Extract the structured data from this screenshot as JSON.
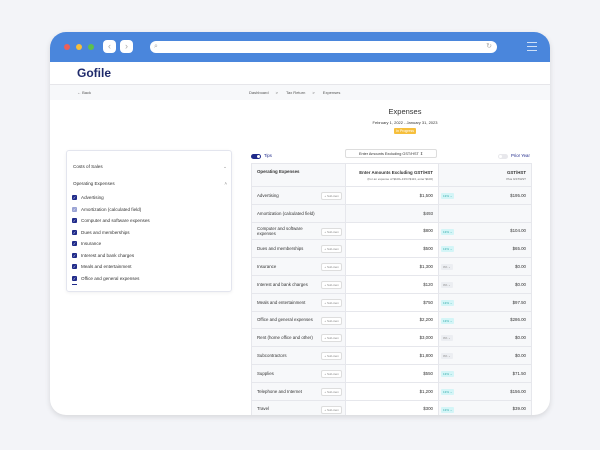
{
  "browser": {
    "colors": {
      "bar": "#4a86dc"
    }
  },
  "header": {
    "logo": "Gofile"
  },
  "breadcrumb": {
    "back": "← Back",
    "items": [
      "Dashboard",
      "Tax Return",
      "Expenses"
    ],
    "sep": ">"
  },
  "page": {
    "title": "Expenses",
    "dates": "February 1, 2022 - January 31, 2023",
    "status": "In Progress"
  },
  "sidebar": {
    "sections": [
      {
        "label": "Costs of Sales",
        "expanded": false
      },
      {
        "label": "Operating Expenses",
        "expanded": true
      }
    ],
    "items": [
      {
        "label": "Advertising",
        "checked": true
      },
      {
        "label": "Amortization (calculated field)",
        "checked": true,
        "disabled": true
      },
      {
        "label": "Computer and software expenses",
        "checked": true
      },
      {
        "label": "Dues and memberships",
        "checked": true
      },
      {
        "label": "Insurance",
        "checked": true
      },
      {
        "label": "Interest and bank charges",
        "checked": true
      },
      {
        "label": "Meals and entertainment",
        "checked": true
      },
      {
        "label": "Office and general expenses",
        "checked": true
      }
    ]
  },
  "toolbar": {
    "tips": "Tips",
    "tips_on": true,
    "mode": "Enter Amounts Excluding GST/HST",
    "prior_year": "Prior Year",
    "prior_year_on": false
  },
  "table": {
    "headers": {
      "name": "Operating Expenses",
      "amount": "Enter Amounts Excluding GST/HST",
      "amount_note": "(For an expense of $100+13%=$113, enter $100)",
      "gst": "GST/HST",
      "gst_note": "Plus GST/HST"
    },
    "sub_item": "+ Sub-item",
    "rows": [
      {
        "name": "Advertising",
        "amount": "$1,500",
        "rate": "13%",
        "gst": "$195.00"
      },
      {
        "name": "Amortization (calculated field)",
        "amount": "$493",
        "rate": "",
        "gst": ""
      },
      {
        "name": "Computer and software expenses",
        "amount": "$800",
        "rate": "13%",
        "gst": "$104.00"
      },
      {
        "name": "Dues and memberships",
        "amount": "$500",
        "rate": "13%",
        "gst": "$65.00"
      },
      {
        "name": "Insurance",
        "amount": "$1,300",
        "rate": "0%",
        "gst": "$0.00"
      },
      {
        "name": "Interest and bank charges",
        "amount": "$120",
        "rate": "0%",
        "gst": "$0.00"
      },
      {
        "name": "Meals and entertainment",
        "amount": "$750",
        "rate": "13%",
        "gst": "$97.50"
      },
      {
        "name": "Office and general expenses",
        "amount": "$2,200",
        "rate": "13%",
        "gst": "$286.00"
      },
      {
        "name": "Rent (home office and other)",
        "amount": "$3,000",
        "rate": "0%",
        "gst": "$0.00"
      },
      {
        "name": "Subcontractors",
        "amount": "$1,800",
        "rate": "0%",
        "gst": "$0.00"
      },
      {
        "name": "Supplies",
        "amount": "$550",
        "rate": "13%",
        "gst": "$71.50"
      },
      {
        "name": "Telephone and Internet",
        "amount": "$1,200",
        "rate": "13%",
        "gst": "$156.00"
      },
      {
        "name": "Travel",
        "amount": "$300",
        "rate": "13%",
        "gst": "$39.00"
      }
    ]
  }
}
